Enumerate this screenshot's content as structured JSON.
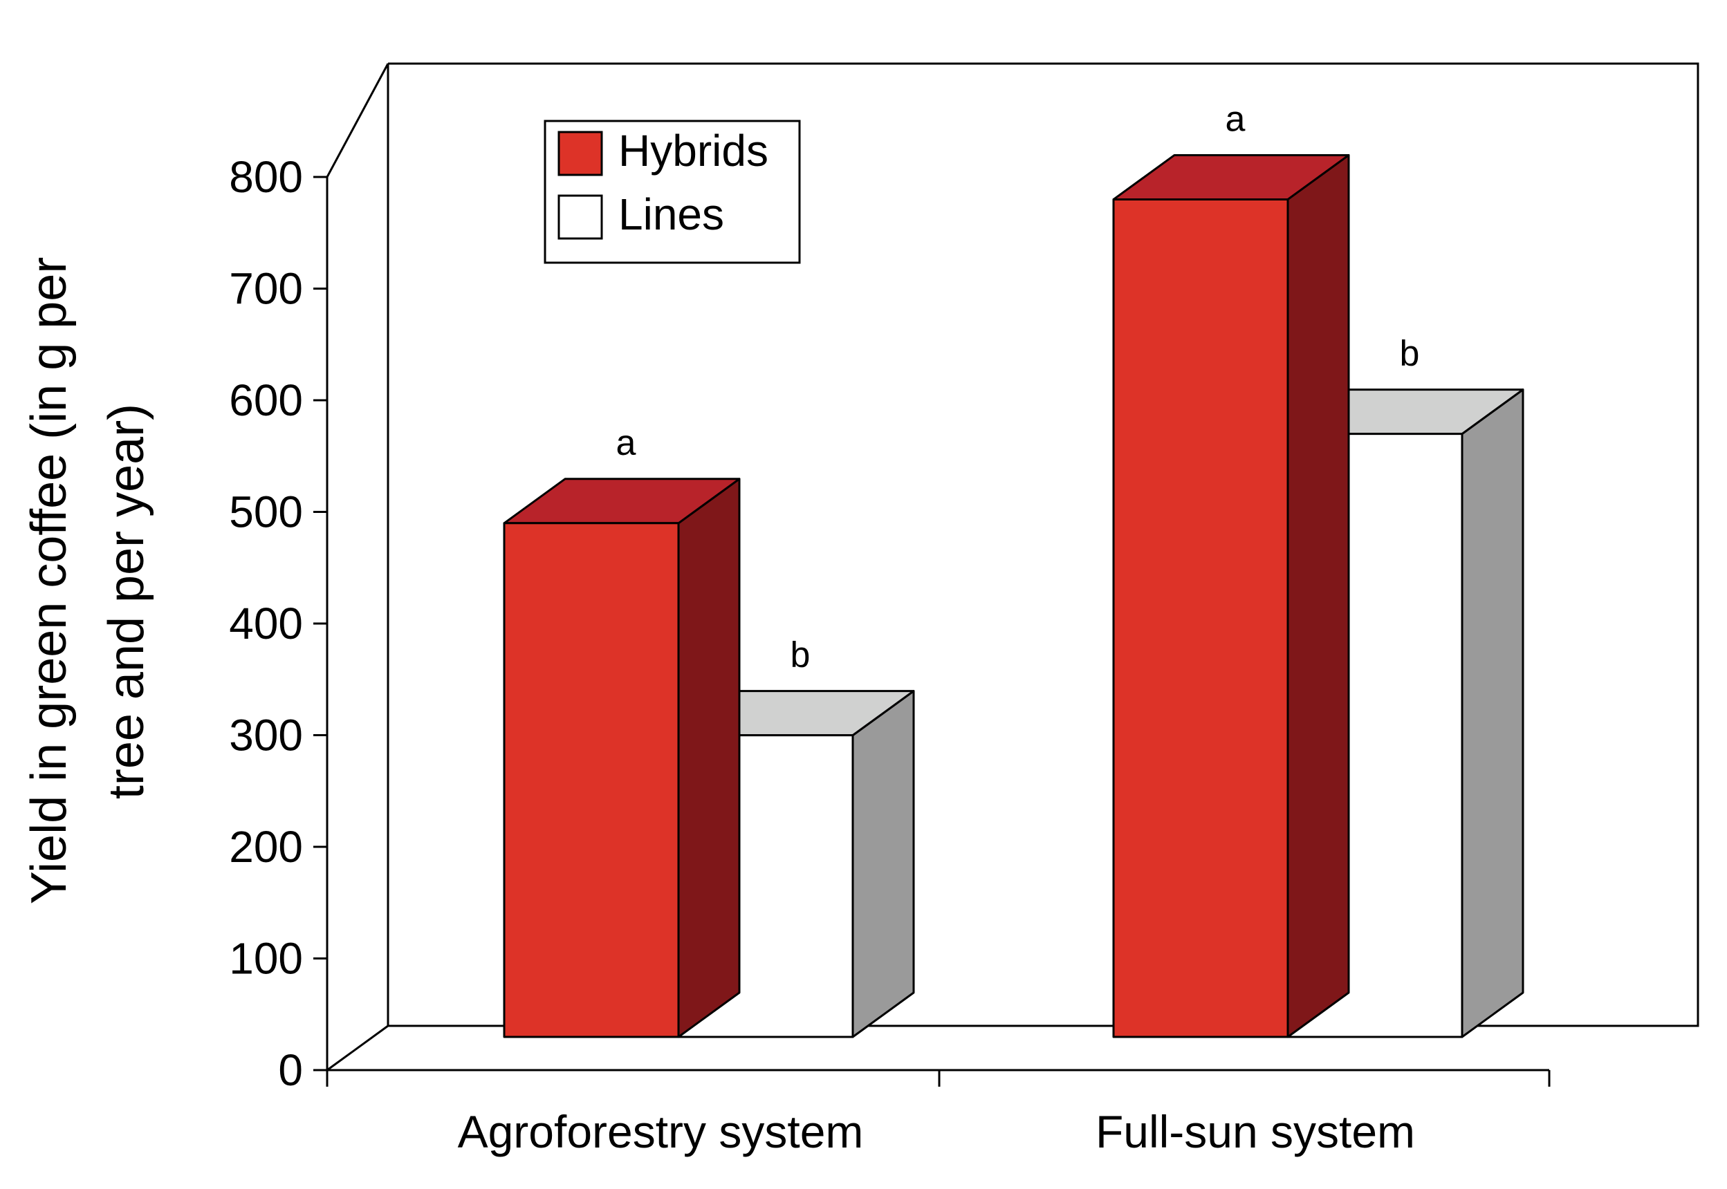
{
  "chart_data": {
    "type": "bar",
    "categories": [
      "Agroforestry system",
      "Full-sun system"
    ],
    "series": [
      {
        "name": "Hybrids",
        "values": [
          480,
          770
        ],
        "sig_labels": [
          "a",
          "a"
        ],
        "colors": {
          "front": "#dd3328",
          "top": "#b8232a",
          "side": "#7f1719"
        }
      },
      {
        "name": "Lines",
        "values": [
          290,
          560
        ],
        "sig_labels": [
          "b",
          "b"
        ],
        "colors": {
          "front": "#ffffff",
          "top": "#d0d1d0",
          "side": "#9a9a9a"
        }
      }
    ],
    "ylabel_line1": "Yield in green coffee (in g per",
    "ylabel_line2": "tree and per year)",
    "yticks": [
      "0",
      "100",
      "200",
      "300",
      "400",
      "500",
      "600",
      "700",
      "800"
    ],
    "ylim": [
      0,
      800
    ],
    "legend_position": "top-left",
    "grid": false
  }
}
